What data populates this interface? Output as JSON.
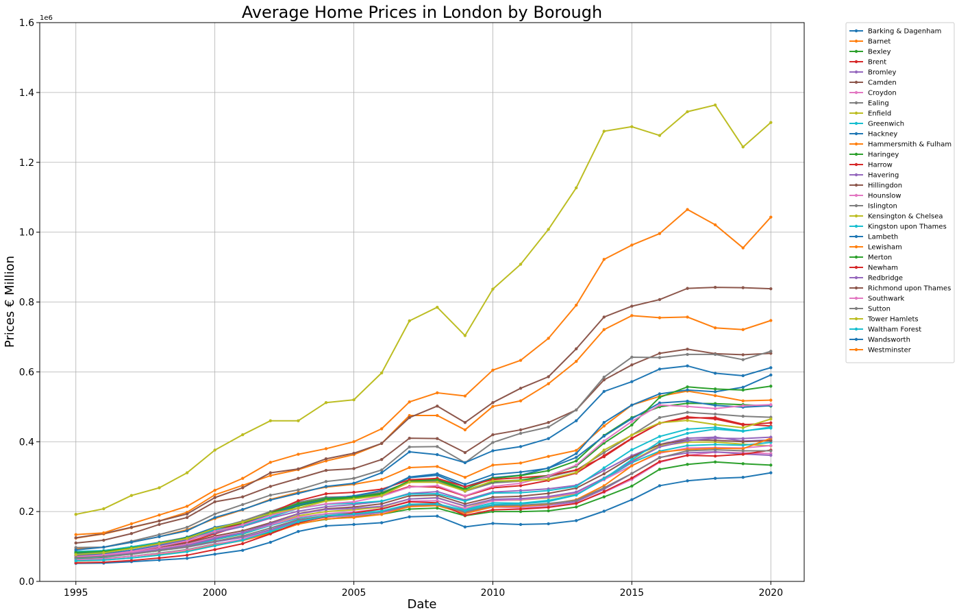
{
  "chart_data": {
    "type": "line",
    "title": "Average Home Prices in London by Borough",
    "xlabel": "Date",
    "ylabel": "Prices € Million",
    "y_offset_label": "1e6",
    "xlim": [
      1993.7,
      2021.2
    ],
    "ylim": [
      0,
      1600000
    ],
    "xticks": [
      1995,
      2000,
      2005,
      2010,
      2015,
      2020
    ],
    "yticks": [
      0,
      200000,
      400000,
      600000,
      800000,
      1000000,
      1200000,
      1400000,
      1600000
    ],
    "ytick_labels": [
      "0.0",
      "0.2",
      "0.4",
      "0.6",
      "0.8",
      "1.0",
      "1.2",
      "1.4",
      "1.6"
    ],
    "grid": true,
    "legend_position": "outside-right",
    "x": [
      1995,
      1996,
      1997,
      1998,
      1999,
      2000,
      2001,
      2002,
      2003,
      2004,
      2005,
      2006,
      2007,
      2008,
      2009,
      2010,
      2011,
      2012,
      2013,
      2014,
      2015,
      2016,
      2017,
      2018,
      2019,
      2020
    ],
    "series": [
      {
        "name": "Barking & Dagenham",
        "color": "#1f77b4",
        "values": [
          51800,
          52500,
          56500,
          61000,
          66000,
          78000,
          89000,
          112000,
          143000,
          159000,
          163000,
          168000,
          185000,
          187000,
          156000,
          166000,
          163000,
          165000,
          174000,
          201000,
          234000,
          274000,
          288000,
          295000,
          298000,
          311000
        ]
      },
      {
        "name": "Barnet",
        "color": "#ff7f0e",
        "values": [
          92500,
          98000,
          112000,
          128000,
          148000,
          180000,
          205000,
          235000,
          255000,
          270000,
          278000,
          292000,
          326000,
          329000,
          298000,
          333000,
          339000,
          358000,
          375000,
          445000,
          505000,
          530000,
          545000,
          532000,
          517000,
          519000
        ]
      },
      {
        "name": "Bexley",
        "color": "#2ca02c",
        "values": [
          64000,
          66000,
          72000,
          81000,
          91000,
          107000,
          119000,
          139000,
          165000,
          178000,
          186000,
          192000,
          207000,
          210000,
          188000,
          200000,
          200000,
          202000,
          213000,
          242000,
          273000,
          321000,
          335000,
          342000,
          337000,
          333000
        ]
      },
      {
        "name": "Brent",
        "color": "#d62728",
        "values": [
          73000,
          77000,
          86000,
          98000,
          112000,
          136000,
          161000,
          191000,
          221000,
          236000,
          237000,
          246000,
          272000,
          270000,
          244000,
          268000,
          274000,
          289000,
          310000,
          360000,
          410000,
          453000,
          471000,
          465000,
          448000,
          454000
        ]
      },
      {
        "name": "Bromley",
        "color": "#9467bd",
        "values": [
          81000,
          84000,
          94000,
          106000,
          119000,
          139000,
          157000,
          181000,
          201000,
          214000,
          220000,
          229000,
          252000,
          257000,
          233000,
          256000,
          260000,
          265000,
          275000,
          318000,
          360000,
          392000,
          410000,
          413000,
          402000,
          405000
        ]
      },
      {
        "name": "Camden",
        "color": "#8c564b",
        "values": [
          110000,
          118000,
          137000,
          163000,
          183000,
          228000,
          242000,
          272000,
          295000,
          318000,
          323000,
          349000,
          410000,
          409000,
          369000,
          420000,
          434000,
          455000,
          491000,
          577000,
          620000,
          653000,
          665000,
          652000,
          649000,
          653000
        ]
      },
      {
        "name": "Croydon",
        "color": "#e377c2",
        "values": [
          62000,
          65000,
          72000,
          80000,
          90000,
          106000,
          121000,
          146000,
          171000,
          184000,
          188000,
          197000,
          215000,
          219000,
          196000,
          213000,
          211000,
          214000,
          224000,
          255000,
          292000,
          341000,
          361000,
          370000,
          368000,
          366000
        ]
      },
      {
        "name": "Ealing",
        "color": "#7f7f7f",
        "values": [
          84000,
          88000,
          99000,
          112000,
          126000,
          151000,
          173000,
          200000,
          227000,
          241000,
          243000,
          255000,
          285000,
          287000,
          258000,
          282000,
          287000,
          299000,
          318000,
          369000,
          419000,
          469000,
          484000,
          479000,
          473000,
          470000
        ]
      },
      {
        "name": "Enfield",
        "color": "#bcbd22",
        "values": [
          69000,
          72000,
          79000,
          90000,
          102000,
          120000,
          135000,
          161000,
          188000,
          200000,
          205000,
          213000,
          236000,
          240000,
          215000,
          232000,
          233000,
          239000,
          251000,
          293000,
          345000,
          388000,
          399000,
          399000,
          393000,
          388000
        ]
      },
      {
        "name": "Greenwich",
        "color": "#17becf",
        "values": [
          67000,
          70000,
          78000,
          88000,
          99000,
          120000,
          136000,
          160000,
          181000,
          193000,
          196000,
          206000,
          229000,
          231000,
          206000,
          225000,
          224000,
          232000,
          248000,
          292000,
          340000,
          373000,
          389000,
          392000,
          390000,
          398000
        ]
      },
      {
        "name": "Hackney",
        "color": "#1f77b4",
        "values": [
          80000,
          83000,
          94000,
          108000,
          127000,
          155000,
          170000,
          193000,
          219000,
          238000,
          244000,
          260000,
          297000,
          304000,
          271000,
          297000,
          304000,
          325000,
          366000,
          455000,
          505000,
          537000,
          548000,
          543000,
          556000,
          591000
        ]
      },
      {
        "name": "Hammersmith & Fulham",
        "color": "#ff7f0e",
        "values": [
          124000,
          136000,
          154000,
          173000,
          198000,
          248000,
          275000,
          303000,
          320000,
          345000,
          363000,
          395000,
          475000,
          475000,
          434000,
          501000,
          517000,
          566000,
          630000,
          721000,
          761000,
          755000,
          757000,
          726000,
          721000,
          747000
        ]
      },
      {
        "name": "Haringey",
        "color": "#2ca02c",
        "values": [
          74000,
          77000,
          87000,
          101000,
          117000,
          142000,
          163000,
          190000,
          216000,
          233000,
          238000,
          250000,
          288000,
          293000,
          265000,
          295000,
          303000,
          317000,
          345000,
          418000,
          469000,
          500000,
          510000,
          509000,
          506000,
          502000
        ]
      },
      {
        "name": "Harrow",
        "color": "#d62728",
        "values": [
          84000,
          87000,
          98000,
          111000,
          123000,
          146000,
          166000,
          196000,
          231000,
          251000,
          255000,
          264000,
          291000,
          295000,
          271000,
          292000,
          297000,
          303000,
          319000,
          357000,
          409000,
          453000,
          468000,
          469000,
          450000,
          445000
        ]
      },
      {
        "name": "Havering",
        "color": "#9467bd",
        "values": [
          69000,
          72000,
          79000,
          88000,
          98000,
          113000,
          126000,
          148000,
          175000,
          186000,
          191000,
          198000,
          216000,
          219000,
          198000,
          215000,
          215000,
          219000,
          228000,
          264000,
          309000,
          355000,
          368000,
          371000,
          365000,
          361000
        ]
      },
      {
        "name": "Hillingdon",
        "color": "#8c564b",
        "values": [
          73000,
          77000,
          86000,
          98000,
          110000,
          130000,
          145000,
          168000,
          194000,
          208000,
          213000,
          222000,
          245000,
          247000,
          222000,
          241000,
          244000,
          252000,
          267000,
          308000,
          356000,
          392000,
          405000,
          404000,
          400000,
          403000
        ]
      },
      {
        "name": "Hounslow",
        "color": "#e377c2",
        "values": [
          70000,
          74000,
          83000,
          94000,
          106000,
          126000,
          140000,
          162000,
          184000,
          194000,
          199000,
          207000,
          230000,
          231000,
          209000,
          231000,
          234000,
          241000,
          253000,
          291000,
          332000,
          367000,
          382000,
          383000,
          382000,
          389000
        ]
      },
      {
        "name": "Islington",
        "color": "#7f7f7f",
        "values": [
          97000,
          98000,
          115000,
          134000,
          155000,
          193000,
          220000,
          247000,
          262000,
          286000,
          295000,
          319000,
          385000,
          386000,
          340000,
          398000,
          424000,
          442000,
          491000,
          585000,
          642000,
          641000,
          650000,
          650000,
          635000,
          659000
        ]
      },
      {
        "name": "Kensington & Chelsea",
        "color": "#bcbd22",
        "values": [
          192000,
          208000,
          246000,
          268000,
          311000,
          376000,
          420000,
          460000,
          460000,
          512000,
          520000,
          597000,
          746000,
          785000,
          704000,
          837000,
          908000,
          1008000,
          1127000,
          1289000,
          1302000,
          1277000,
          1345000,
          1364000,
          1244000,
          1314000
        ]
      },
      {
        "name": "Kingston upon Thames",
        "color": "#17becf",
        "values": [
          86000,
          88000,
          99000,
          111000,
          124000,
          147000,
          159000,
          184000,
          209000,
          221000,
          224000,
          230000,
          250000,
          251000,
          230000,
          253000,
          254000,
          260000,
          272000,
          325000,
          377000,
          415000,
          436000,
          441000,
          431000,
          439000
        ]
      },
      {
        "name": "Lambeth",
        "color": "#1f77b4",
        "values": [
          76000,
          79000,
          89000,
          102000,
          117000,
          143000,
          162000,
          193000,
          219000,
          236000,
          245000,
          260000,
          299000,
          308000,
          278000,
          306000,
          313000,
          324000,
          355000,
          416000,
          466000,
          511000,
          516000,
          504000,
          499000,
          503000
        ]
      },
      {
        "name": "Lewisham",
        "color": "#ff7f0e",
        "values": [
          58000,
          61000,
          67000,
          76000,
          86000,
          103000,
          117000,
          137000,
          164000,
          179000,
          183000,
          192000,
          214000,
          217000,
          194000,
          214000,
          215000,
          221000,
          234000,
          274000,
          331000,
          370000,
          378000,
          381000,
          380000,
          410000
        ]
      },
      {
        "name": "Merton",
        "color": "#2ca02c",
        "values": [
          83000,
          86000,
          96000,
          109000,
          125000,
          151000,
          168000,
          196000,
          223000,
          237000,
          241000,
          252000,
          286000,
          291000,
          261000,
          286000,
          290000,
          303000,
          330000,
          396000,
          448000,
          527000,
          557000,
          551000,
          548000,
          559000
        ]
      },
      {
        "name": "Newham",
        "color": "#d62728",
        "values": [
          53000,
          55000,
          60000,
          67000,
          75000,
          91000,
          108000,
          136000,
          168000,
          185000,
          196000,
          208000,
          228000,
          225000,
          189000,
          205000,
          207000,
          212000,
          223000,
          257000,
          296000,
          343000,
          361000,
          359000,
          364000,
          376000
        ]
      },
      {
        "name": "Redbridge",
        "color": "#9467bd",
        "values": [
          70000,
          72000,
          80000,
          91000,
          103000,
          123000,
          140000,
          165000,
          193000,
          206000,
          209000,
          215000,
          236000,
          239000,
          216000,
          235000,
          237000,
          243000,
          256000,
          296000,
          343000,
          385000,
          403000,
          410000,
          409000,
          413000
        ]
      },
      {
        "name": "Richmond upon Thames",
        "color": "#8c564b",
        "values": [
          125000,
          137000,
          155000,
          173000,
          193000,
          240000,
          268000,
          311000,
          322000,
          351000,
          367000,
          395000,
          469000,
          502000,
          455000,
          512000,
          553000,
          586000,
          666000,
          757000,
          788000,
          807000,
          839000,
          842000,
          841000,
          838000
        ]
      },
      {
        "name": "Southwark",
        "color": "#e377c2",
        "values": [
          71000,
          76000,
          86000,
          100000,
          116000,
          143000,
          162000,
          189000,
          209000,
          222000,
          228000,
          244000,
          270000,
          274000,
          245000,
          272000,
          281000,
          302000,
          333000,
          402000,
          458000,
          505000,
          501000,
          495000,
          503000,
          506000
        ]
      },
      {
        "name": "Sutton",
        "color": "#7f7f7f",
        "values": [
          68000,
          71000,
          78000,
          88000,
          99000,
          115000,
          130000,
          153000,
          177000,
          188000,
          193000,
          200000,
          219000,
          220000,
          199000,
          217000,
          218000,
          223000,
          232000,
          268000,
          309000,
          354000,
          374000,
          377000,
          374000,
          374000
        ]
      },
      {
        "name": "Tower Hamlets",
        "color": "#bcbd22",
        "values": [
          77000,
          82000,
          94000,
          108000,
          123000,
          152000,
          170000,
          194000,
          210000,
          230000,
          236000,
          246000,
          284000,
          284000,
          259000,
          288000,
          288000,
          292000,
          312000,
          376000,
          419000,
          454000,
          461000,
          449000,
          440000,
          465000
        ]
      },
      {
        "name": "Waltham Forest",
        "color": "#17becf",
        "values": [
          59000,
          61000,
          67000,
          75000,
          85000,
          102000,
          118000,
          143000,
          171000,
          187000,
          193000,
          201000,
          221000,
          222000,
          203000,
          220000,
          222000,
          229000,
          247000,
          294000,
          349000,
          400000,
          424000,
          436000,
          430000,
          442000
        ]
      },
      {
        "name": "Wandsworth",
        "color": "#1f77b4",
        "values": [
          90000,
          98000,
          112000,
          128000,
          145000,
          183000,
          206000,
          233000,
          252000,
          272000,
          281000,
          311000,
          371000,
          363000,
          340000,
          374000,
          386000,
          409000,
          460000,
          544000,
          572000,
          608000,
          617000,
          596000,
          589000,
          612000
        ]
      },
      {
        "name": "Westminster",
        "color": "#ff7f0e",
        "values": [
          134000,
          139000,
          165000,
          190000,
          215000,
          261000,
          295000,
          341000,
          364000,
          380000,
          400000,
          437000,
          514000,
          540000,
          531000,
          605000,
          633000,
          696000,
          791000,
          922000,
          963000,
          996000,
          1065000,
          1021000,
          955000,
          1043000
        ]
      }
    ]
  }
}
